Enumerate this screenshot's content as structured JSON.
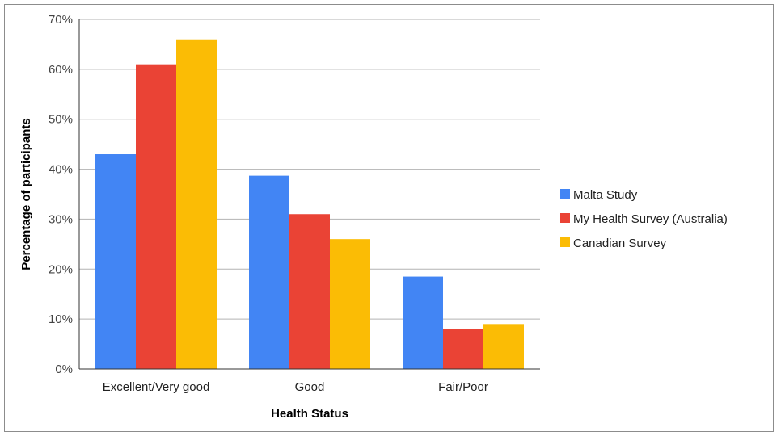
{
  "chart_data": {
    "type": "bar",
    "title": "",
    "xlabel": "Health Status",
    "ylabel": "Percentage of participants",
    "categories": [
      "Excellent/Very good",
      "Good",
      "Fair/Poor"
    ],
    "series": [
      {
        "name": "Malta Study",
        "color": "#4285f4",
        "values": [
          43,
          38.7,
          18.5
        ]
      },
      {
        "name": "My Health Survey (Australia)",
        "color": "#ea4335",
        "values": [
          61,
          31,
          8
        ]
      },
      {
        "name": "Canadian Survey",
        "color": "#fbbc05",
        "values": [
          66,
          26,
          9
        ]
      }
    ],
    "ylim": [
      0,
      70
    ],
    "yticks": [
      "0%",
      "10%",
      "20%",
      "30%",
      "40%",
      "50%",
      "60%",
      "70%"
    ],
    "grid": true,
    "legend_position": "right"
  }
}
